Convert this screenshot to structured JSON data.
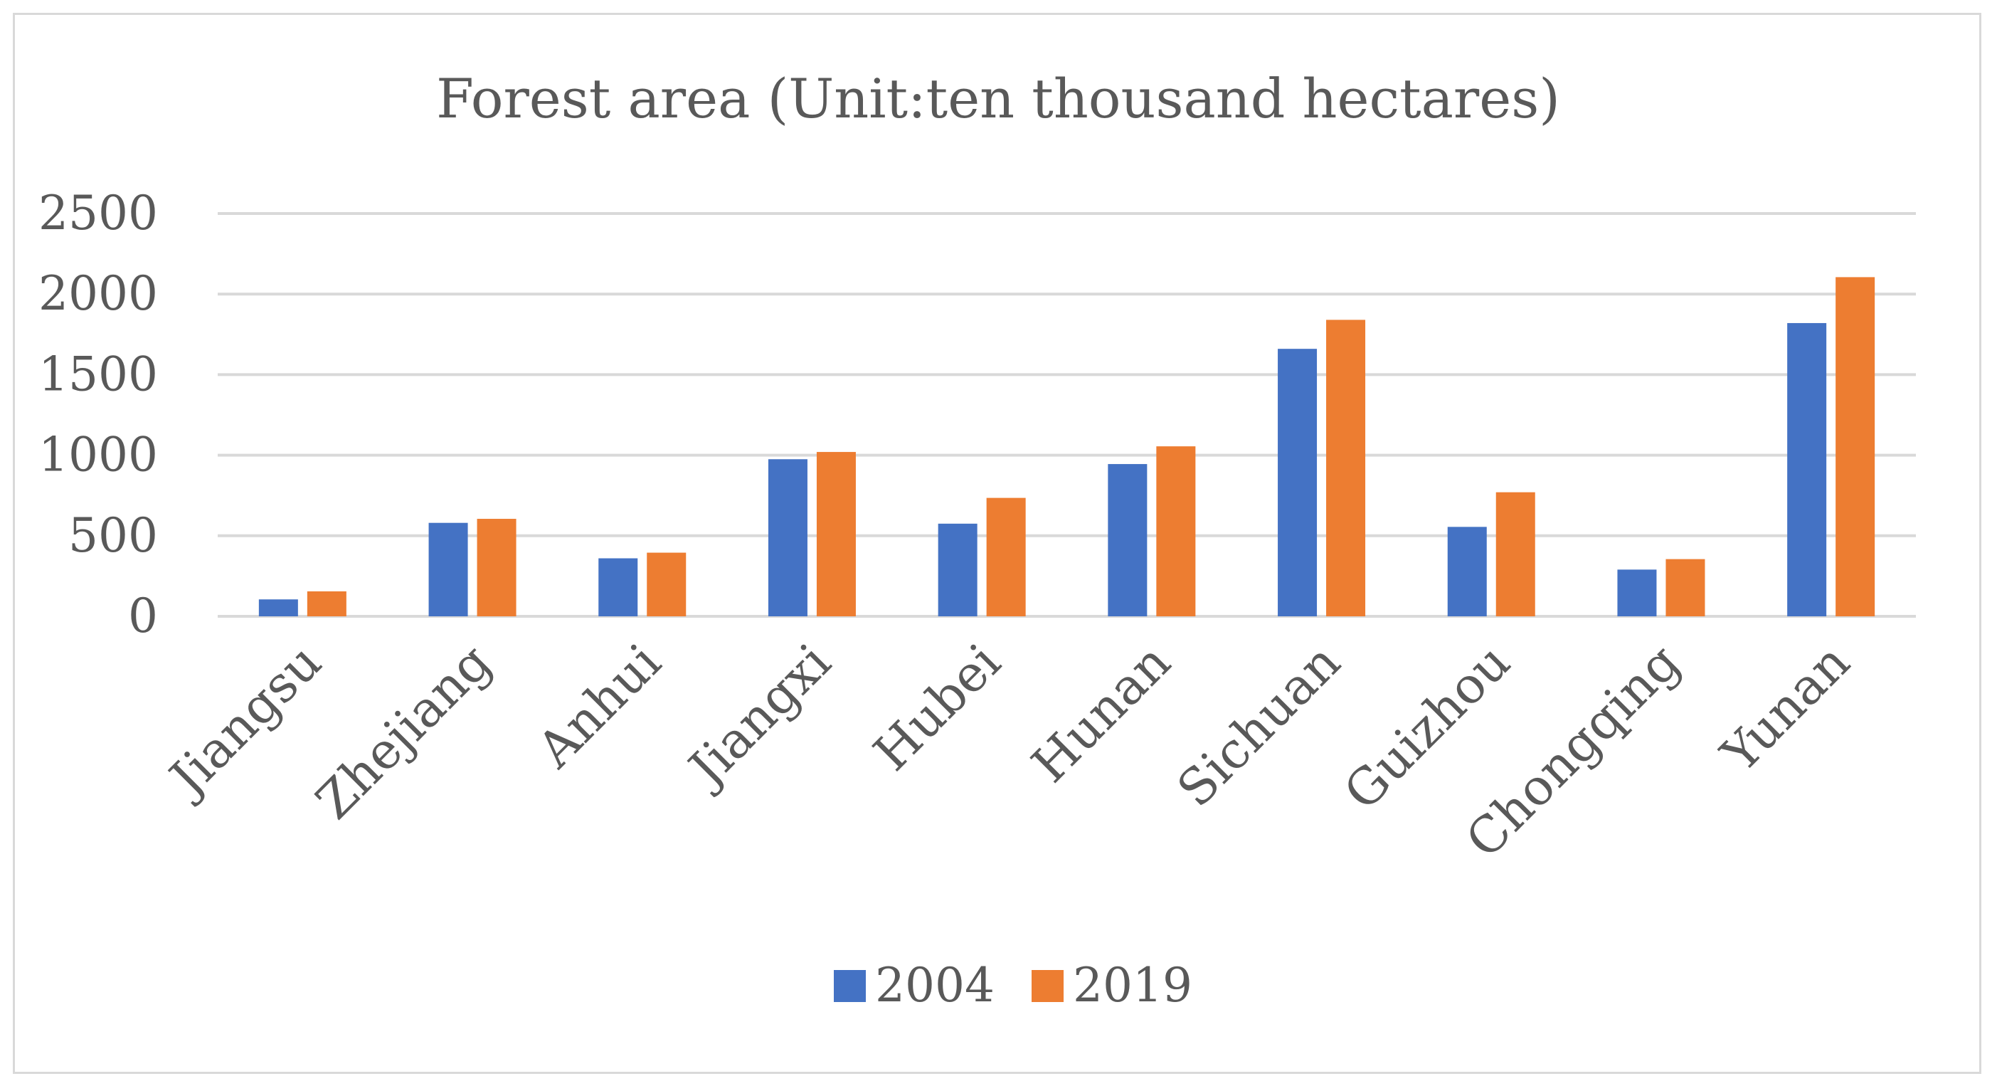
{
  "chart_data": {
    "type": "bar",
    "title": "Forest area  (Unit:ten thousand hectares)",
    "xlabel": "",
    "ylabel": "",
    "ylim": [
      0,
      2500
    ],
    "yticks": [
      0,
      500,
      1000,
      1500,
      2000,
      2500
    ],
    "grid": true,
    "legend_position": "bottom",
    "categories": [
      "Jiangsu",
      "Zhejiang",
      "Anhui",
      "Jiangxi",
      "Hubei",
      "Hunan",
      "Sichuan",
      "Guizhou",
      "Chongqing",
      "Yunan"
    ],
    "series": [
      {
        "name": "2004",
        "color": "#4472c4",
        "values": [
          105,
          580,
          360,
          975,
          575,
          945,
          1660,
          555,
          290,
          1820
        ]
      },
      {
        "name": "2019",
        "color": "#ed7d31",
        "values": [
          155,
          605,
          395,
          1020,
          735,
          1055,
          1840,
          770,
          355,
          2105
        ]
      }
    ]
  }
}
